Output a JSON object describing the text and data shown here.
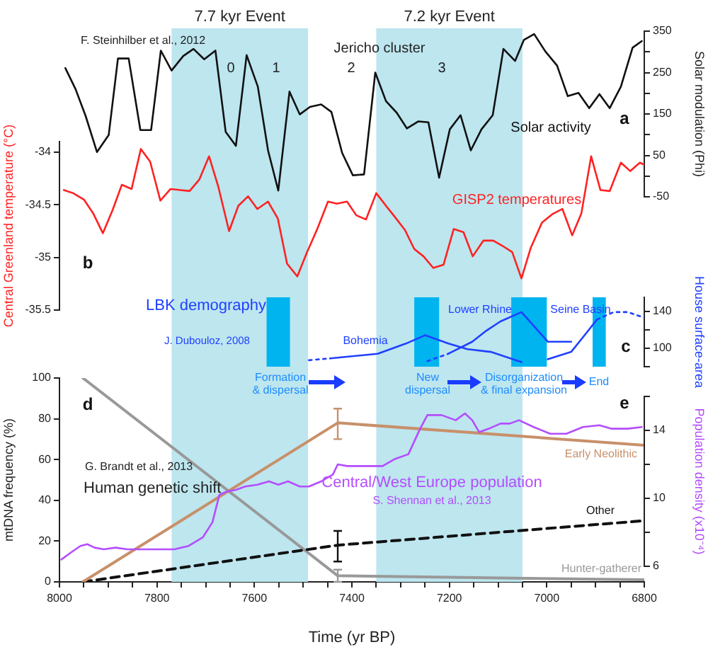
{
  "chart_data": [
    {
      "type": "line",
      "xlim": [
        8000,
        6800
      ],
      "ylim": [
        -50,
        350
      ],
      "yticks": [
        -50,
        {
          "value": 0,
          "label": null
        },
        50,
        {
          "value": 100,
          "label": null
        },
        150,
        {
          "value": 200,
          "label": null
        },
        250,
        {
          "value": 300,
          "label": null
        },
        350
      ],
      "ylabel": "Solar modulation (Phi)",
      "tick_labels": "y",
      "marker": "none",
      "annotations": [
        "F. Steinhilber et al., 2012",
        "Jericho cluster",
        "0",
        "1",
        "2",
        "3",
        "a"
      ],
      "series": [
        {
          "name": "Solar activity",
          "color": "#111111",
          "x": [
            7988,
            7967,
            7946,
            7923,
            7899,
            7880,
            7858,
            7834,
            7812,
            7792,
            7770,
            7746,
            7725,
            7703,
            7680,
            7659,
            7638,
            7616,
            7593,
            7572,
            7551,
            7528,
            7507,
            7486,
            7463,
            7442,
            7420,
            7398,
            7375,
            7352,
            7330,
            7308,
            7287,
            7264,
            7243,
            7221,
            7199,
            7177,
            7156,
            7134,
            7111,
            7089,
            7065,
            7047,
            7026,
            7003,
            6979,
            6957,
            6935,
            6913,
            6892,
            6871,
            6848,
            6824,
            6805
          ],
          "values": [
            261,
            210,
            144,
            58,
            99,
            284,
            284,
            111,
            111,
            303,
            255,
            290,
            307,
            282,
            303,
            107,
            73,
            292,
            216,
            62,
            -35,
            204,
            149,
            167,
            173,
            155,
            56,
            2,
            4,
            250,
            181,
            153,
            115,
            132,
            130,
            -4,
            113,
            147,
            62,
            113,
            147,
            307,
            278,
            329,
            343,
            301,
            267,
            193,
            201,
            164,
            198,
            164,
            216,
            310,
            326
          ]
        }
      ]
    },
    {
      "type": "line",
      "xlim": [
        8000,
        6800
      ],
      "ylim": [
        -35.5,
        -33.9
      ],
      "yticks": [
        -35.5,
        -35,
        -34.5,
        -34
      ],
      "ylabel": "Central Greenland temperature (°C)",
      "tick_labels": "y",
      "marker": "none",
      "annotations": [
        "b"
      ],
      "series": [
        {
          "name": "GISP2 temperatures",
          "color": "#ff2222",
          "x": [
            7991,
            7972,
            7950,
            7931,
            7911,
            7891,
            7872,
            7852,
            7833,
            7814,
            7793,
            7772,
            7752,
            7733,
            7713,
            7693,
            7674,
            7652,
            7633,
            7613,
            7594,
            7572,
            7552,
            7533,
            7512,
            7492,
            7471,
            7449,
            7431,
            7410,
            7391,
            7371,
            7350,
            7330,
            7311,
            7291,
            7272,
            7253,
            7233,
            7212,
            7191,
            7171,
            7152,
            7130,
            7110,
            7091,
            7071,
            7052,
            7033,
            7010,
            6989,
            6968,
            6948,
            6929,
            6909,
            6890,
            6871,
            6848,
            6829,
            6809,
            6800
          ],
          "values": [
            -34.36,
            -34.39,
            -34.45,
            -34.58,
            -34.77,
            -34.55,
            -34.31,
            -34.35,
            -33.97,
            -34.09,
            -34.46,
            -34.35,
            -34.36,
            -34.37,
            -34.26,
            -34.04,
            -34.33,
            -34.75,
            -34.51,
            -34.42,
            -34.54,
            -34.47,
            -34.63,
            -35.06,
            -35.18,
            -34.95,
            -34.73,
            -34.47,
            -34.49,
            -34.47,
            -34.6,
            -34.64,
            -34.39,
            -34.51,
            -34.62,
            -34.74,
            -34.92,
            -34.99,
            -35.1,
            -35.07,
            -34.73,
            -34.76,
            -34.99,
            -34.84,
            -34.84,
            -34.89,
            -34.95,
            -35.2,
            -34.91,
            -34.67,
            -34.59,
            -34.54,
            -34.79,
            -34.58,
            -34.04,
            -34.36,
            -34.37,
            -34.1,
            -34.18,
            -34.1,
            -34.12
          ]
        }
      ]
    },
    {
      "type": "line",
      "xlim": [
        8000,
        6800
      ],
      "ylim": [
        80,
        155
      ],
      "yticks": [
        {
          "value": 80,
          "label": null
        },
        100,
        {
          "value": 120,
          "label": null
        },
        140
      ],
      "ylabel": "House surface-area",
      "tick_labels": "y",
      "marker": "none",
      "annotations": [
        "LBK demography",
        "J. Dubouloz, 2008",
        "c",
        "Formation\n& dispersal",
        "New\ndispersal",
        "Disorganization\n& final expansion",
        "End"
      ],
      "bands": [
        {
          "axis": "x",
          "from": 7575,
          "to": 7527,
          "color": "#00b4f0"
        },
        {
          "axis": "x",
          "from": 7272,
          "to": 7221,
          "color": "#00b4f0"
        },
        {
          "axis": "x",
          "from": 7073,
          "to": 7000,
          "color": "#00b4f0"
        },
        {
          "axis": "x",
          "from": 6906,
          "to": 6879,
          "color": "#00b4f0"
        }
      ],
      "series": [
        {
          "color": "#2040ff",
          "line_style": "dotted",
          "x": [
            7488,
            7444
          ],
          "values": [
            87,
            89
          ]
        },
        {
          "name": "Bohemia",
          "color": "#2040ff",
          "x": [
            7444,
            7347,
            7289,
            7250,
            7202,
            7163,
            7115,
            7052
          ],
          "values": [
            89,
            94,
            105,
            114,
            105,
            99,
            96,
            85
          ]
        },
        {
          "color": "#2040ff",
          "line_style": "dotted",
          "x": [
            7245,
            7202
          ],
          "values": [
            86,
            94
          ]
        },
        {
          "name": "Lower Rhine",
          "color": "#2040ff",
          "x": [
            7202,
            7153,
            7124,
            7095,
            7052,
            6998,
            6950
          ],
          "values": [
            94,
            107,
            119,
            129,
            139,
            107,
            107
          ]
        },
        {
          "name": "Seine Basin",
          "color": "#2040ff",
          "x": [
            6998,
            6950,
            6921,
            6897
          ],
          "values": [
            88,
            96,
            115,
            131
          ]
        },
        {
          "color": "#2040ff",
          "line_style": "dotted",
          "x": [
            6897,
            6863,
            6834,
            6800
          ],
          "values": [
            131,
            139,
            139,
            133
          ]
        }
      ]
    },
    {
      "type": "line",
      "xlim": [
        8000,
        6800
      ],
      "ylim": [
        0,
        100
      ],
      "yticks": [
        0,
        20,
        40,
        60,
        80,
        100
      ],
      "xticks": [
        8000,
        {
          "value": 7950,
          "label": null
        },
        {
          "value": 7900,
          "label": null
        },
        {
          "value": 7850,
          "label": null
        },
        7800,
        {
          "value": 7750,
          "label": null
        },
        {
          "value": 7700,
          "label": null
        },
        {
          "value": 7650,
          "label": null
        },
        7600,
        {
          "value": 7550,
          "label": null
        },
        {
          "value": 7500,
          "label": null
        },
        {
          "value": 7450,
          "label": null
        },
        7400,
        {
          "value": 7350,
          "label": null
        },
        {
          "value": 7300,
          "label": null
        },
        {
          "value": 7250,
          "label": null
        },
        7200,
        {
          "value": 7150,
          "label": null
        },
        {
          "value": 7100,
          "label": null
        },
        {
          "value": 7050,
          "label": null
        },
        7000,
        {
          "value": 6950,
          "label": null
        },
        {
          "value": 6900,
          "label": null
        },
        {
          "value": 6850,
          "label": null
        },
        6800
      ],
      "xlabel": "Time (yr BP)",
      "ylabel": "mtDNA frequency (%)",
      "marker": "none",
      "annotations": [
        "d",
        "G. Brandt et al., 2013",
        "Human genetic shift"
      ],
      "bands": [
        {
          "axis": "x",
          "from": 7770,
          "to": 7490,
          "label": "7.7 kyr Event",
          "color": "#bde6ef"
        },
        {
          "axis": "x",
          "from": 7350,
          "to": 7050,
          "label": "7.2 kyr Event",
          "color": "#bde6ef"
        }
      ],
      "series": [
        {
          "name": "Early Neolithic",
          "color": "#c8906a",
          "x": [
            7952,
            7429,
            6800
          ],
          "values": [
            0,
            78,
            67
          ],
          "errors": [
            null,
            [
              70,
              85
            ],
            null
          ]
        },
        {
          "name": "Other",
          "color": "#111111",
          "line_style": "dashed",
          "x": [
            7952,
            7429,
            6800
          ],
          "values": [
            0,
            18,
            30
          ],
          "errors": [
            null,
            [
              10,
              25
            ],
            null
          ]
        },
        {
          "name": "Hunter-gatherer",
          "color": "#999999",
          "x": [
            7952,
            7429,
            6800
          ],
          "values": [
            100,
            3,
            1
          ],
          "errors": [
            null,
            [
              0,
              6
            ],
            null
          ]
        }
      ]
    },
    {
      "type": "line",
      "xlim": [
        8000,
        6800
      ],
      "ylim": [
        6,
        16
      ],
      "yticks": [
        6,
        {
          "value": 8,
          "label": null
        },
        10,
        {
          "value": 12,
          "label": null
        },
        14,
        {
          "value": 16,
          "label": null
        }
      ],
      "ylabel": "Population density (x10⁻⁴)",
      "tick_labels": "y",
      "marker": "none",
      "annotations": [
        "e",
        "S. Shennan et al., 2013"
      ],
      "series": [
        {
          "name": "Central/West Europe population",
          "color": "#b44dff",
          "x": [
            7996,
            7977,
            7957,
            7943,
            7928,
            7909,
            7885,
            7861,
            7831,
            7793,
            7764,
            7735,
            7706,
            7686,
            7672,
            7657,
            7638,
            7619,
            7594,
            7570,
            7551,
            7531,
            7507,
            7488,
            7463,
            7439,
            7429,
            7410,
            7376,
            7337,
            7313,
            7284,
            7260,
            7245,
            7216,
            7187,
            7168,
            7153,
            7139,
            7119,
            7095,
            7076,
            7057,
            7027,
            6993,
            6960,
            6926,
            6892,
            6868,
            6834,
            6805
          ],
          "values": [
            6.4,
            6.8,
            7.2,
            7.3,
            7.1,
            7,
            7.1,
            7,
            7,
            7,
            7,
            7.2,
            7.7,
            8.6,
            10.2,
            10.4,
            10.5,
            10.7,
            10.8,
            11,
            10.8,
            11,
            10.7,
            10.7,
            11,
            11.4,
            12,
            11.9,
            11.9,
            11.9,
            12.3,
            12.6,
            14.1,
            14.9,
            14.9,
            14.6,
            15,
            14.6,
            13.9,
            14.1,
            14.4,
            14.4,
            14.6,
            14.2,
            13.8,
            13.8,
            14.2,
            14.3,
            14.1,
            14.1,
            14.2
          ]
        }
      ]
    }
  ]
}
